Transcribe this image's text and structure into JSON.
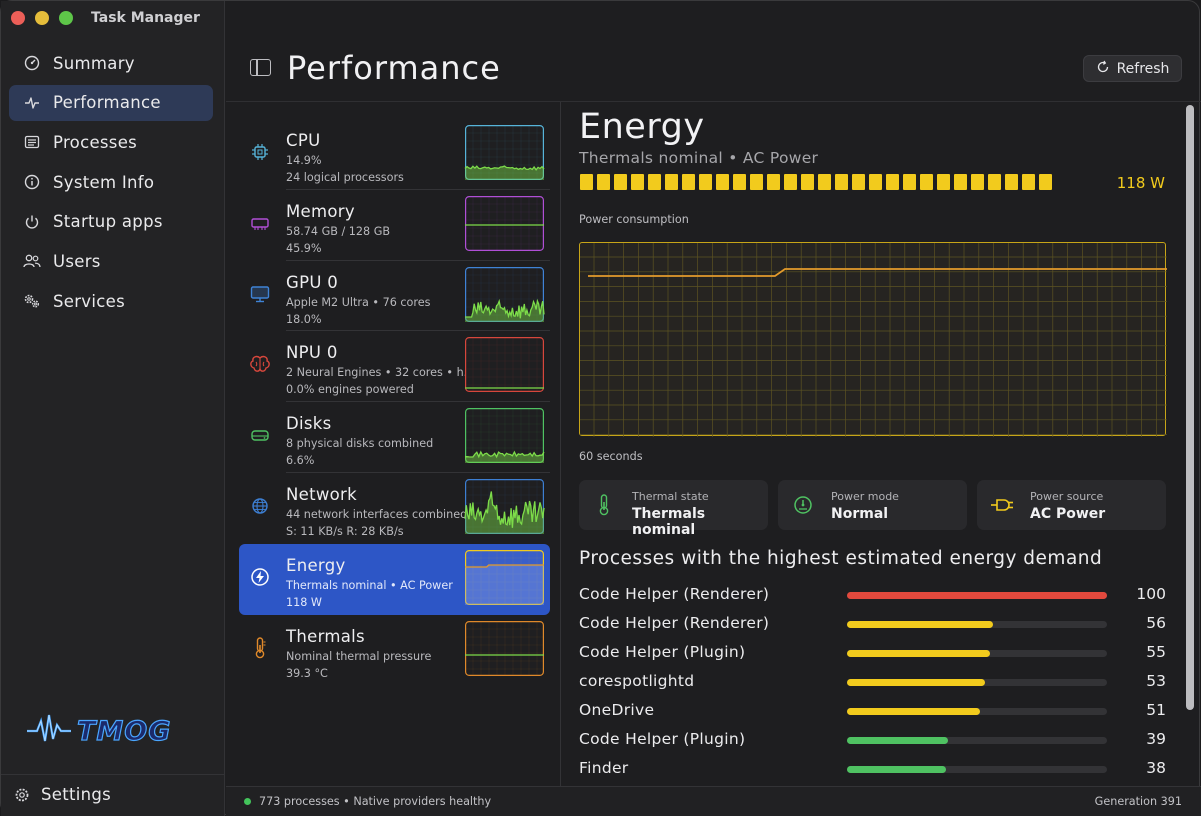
{
  "window": {
    "title": "Task Manager"
  },
  "sidebar": {
    "items": [
      {
        "label": "Summary",
        "icon": "gauge-icon",
        "active": false
      },
      {
        "label": "Performance",
        "icon": "activity-icon",
        "active": true
      },
      {
        "label": "Processes",
        "icon": "list-icon",
        "active": false
      },
      {
        "label": "System Info",
        "icon": "info-icon",
        "active": false
      },
      {
        "label": "Startup apps",
        "icon": "power-icon",
        "active": false
      },
      {
        "label": "Users",
        "icon": "users-icon",
        "active": false
      },
      {
        "label": "Services",
        "icon": "gears-icon",
        "active": false
      }
    ],
    "logo_text": "TMOG",
    "settings_label": "Settings"
  },
  "header": {
    "title": "Performance",
    "refresh_label": "Refresh"
  },
  "resources": [
    {
      "name": "CPU",
      "line1": "14.9%",
      "line2": "24 logical processors",
      "color": "#56b4d9",
      "icon": "cpu-icon",
      "spark": "cpu"
    },
    {
      "name": "Memory",
      "line1": "58.74 GB / 128 GB",
      "line2": "45.9%",
      "color": "#b04fd6",
      "icon": "memory-icon",
      "spark": "flat"
    },
    {
      "name": "GPU 0",
      "line1": "Apple M2 Ultra • 76 cores",
      "line2": "18.0%",
      "color": "#3f83d6",
      "icon": "monitor-icon",
      "spark": "gpu"
    },
    {
      "name": "NPU 0",
      "line1": "2 Neural Engines • 32 cores • h...",
      "line2": "0.0% engines powered",
      "color": "#d7473c",
      "icon": "brain-icon",
      "spark": "zero"
    },
    {
      "name": "Disks",
      "line1": "8 physical disks combined",
      "line2": "6.6%",
      "color": "#4fc262",
      "icon": "disk-icon",
      "spark": "disk"
    },
    {
      "name": "Network",
      "line1": "44 network interfaces combined",
      "line2": "S: 11 KB/s  R: 28 KB/s",
      "color": "#3d7fd3",
      "icon": "globe-icon",
      "spark": "net"
    },
    {
      "name": "Energy",
      "line1": "Thermals nominal • AC Power",
      "line2": "118 W",
      "color": "#f2cb1d",
      "icon": "bolt-icon",
      "spark": "energy",
      "active": true
    },
    {
      "name": "Thermals",
      "line1": "Nominal thermal pressure",
      "line2": "39.3 °C",
      "color": "#e0892a",
      "icon": "thermometer-icon",
      "spark": "therm"
    }
  ],
  "detail": {
    "title": "Energy",
    "subtitle": "Thermals nominal • AC Power",
    "watts": "118 W",
    "segments_filled": 28,
    "chart_label": "Power consumption",
    "chart_foot": "60 seconds",
    "accent": "#f2cb1d",
    "line_color": "#e39a2b",
    "cards": [
      {
        "label": "Thermal state",
        "value": "Thermals nominal",
        "icon": "thermometer-icon"
      },
      {
        "label": "Power mode",
        "value": "Normal",
        "icon": "gauge-icon"
      },
      {
        "label": "Power source",
        "value": "AC Power",
        "icon": "plug-icon"
      }
    ],
    "processes_title": "Processes with the highest estimated energy demand",
    "processes": [
      {
        "name": "Code Helper (Renderer)",
        "value": 100,
        "color": "#e2493d"
      },
      {
        "name": "Code Helper (Renderer)",
        "value": 56,
        "color": "#f2cb1d"
      },
      {
        "name": "Code Helper (Plugin)",
        "value": 55,
        "color": "#f2cb1d"
      },
      {
        "name": "corespotlightd",
        "value": 53,
        "color": "#f2cb1d"
      },
      {
        "name": "OneDrive",
        "value": 51,
        "color": "#f2cb1d"
      },
      {
        "name": "Code Helper (Plugin)",
        "value": 39,
        "color": "#4fc262"
      },
      {
        "name": "Finder",
        "value": 38,
        "color": "#4fc262"
      }
    ]
  },
  "statusbar": {
    "text": "773 processes • Native providers healthy",
    "generation": "Generation 391",
    "dot_color": "#43c45b"
  }
}
